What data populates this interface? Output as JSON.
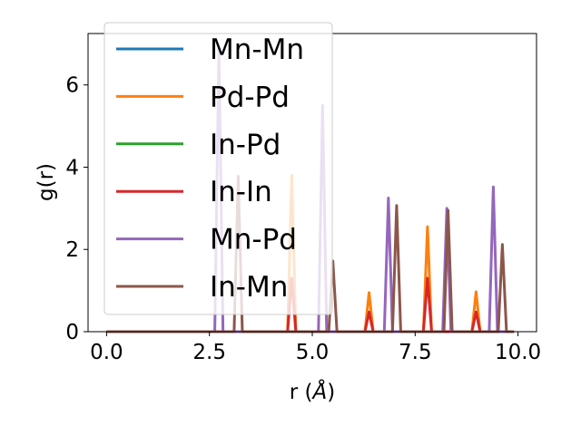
{
  "chart_data": {
    "type": "line",
    "xlabel": "r (",
    "xlabel_unit": "Å",
    "xlabel_close": ")",
    "ylabel": "g(r)",
    "xlim": [
      -0.45,
      10.45
    ],
    "ylim": [
      0,
      7.25
    ],
    "x_ticks": [
      0.0,
      2.5,
      5.0,
      7.5,
      10.0
    ],
    "x_tick_labels": [
      "0.0",
      "2.5",
      "5.0",
      "7.5",
      "10.0"
    ],
    "y_ticks": [
      0,
      2,
      4,
      6
    ],
    "y_tick_labels": [
      "0",
      "2",
      "4",
      "6"
    ],
    "grid": false,
    "legend_position": "upper left",
    "peak_halfwidth": 0.1,
    "x_range": [
      0.0,
      9.9
    ],
    "series": [
      {
        "name": "Mn-Mn",
        "color": "#1f77b4",
        "peaks": []
      },
      {
        "name": "Pd-Pd",
        "color": "#ff7f0e",
        "peaks": [
          [
            4.5,
            3.8
          ],
          [
            6.38,
            0.95
          ],
          [
            7.8,
            2.55
          ],
          [
            8.98,
            0.97
          ]
        ]
      },
      {
        "name": "In-Pd",
        "color": "#2ca02c",
        "peaks": []
      },
      {
        "name": "In-In",
        "color": "#d62728",
        "peaks": [
          [
            4.5,
            1.3
          ],
          [
            6.38,
            0.48
          ],
          [
            7.8,
            1.3
          ],
          [
            8.98,
            0.48
          ]
        ]
      },
      {
        "name": "Mn-Pd",
        "color": "#9467bd",
        "peaks": [
          [
            2.73,
            6.9
          ],
          [
            5.25,
            5.5
          ],
          [
            6.85,
            3.25
          ],
          [
            8.27,
            3.0
          ],
          [
            9.4,
            3.52
          ]
        ]
      },
      {
        "name": "In-Mn",
        "color": "#8c564b",
        "peaks": [
          [
            3.2,
            3.78
          ],
          [
            5.5,
            1.72
          ],
          [
            7.05,
            3.07
          ],
          [
            8.3,
            2.95
          ],
          [
            9.62,
            2.12
          ]
        ]
      }
    ]
  }
}
